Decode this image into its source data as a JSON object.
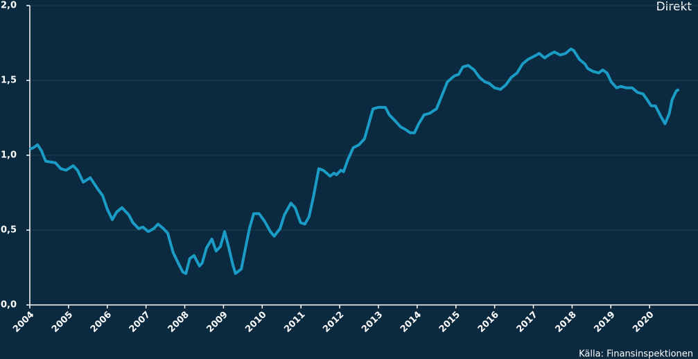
{
  "chart_data": {
    "type": "line",
    "x": [
      2004.0,
      2004.09,
      2004.2,
      2004.3,
      2004.41,
      2004.66,
      2004.8,
      2004.94,
      2005.12,
      2005.23,
      2005.38,
      2005.56,
      2005.74,
      2005.88,
      2006.0,
      2006.13,
      2006.24,
      2006.38,
      2006.56,
      2006.66,
      2006.81,
      2006.92,
      2007.06,
      2007.2,
      2007.31,
      2007.45,
      2007.56,
      2007.7,
      2007.85,
      2007.95,
      2008.03,
      2008.13,
      2008.24,
      2008.38,
      2008.45,
      2008.56,
      2008.7,
      2008.81,
      2008.92,
      2009.03,
      2009.13,
      2009.24,
      2009.31,
      2009.46,
      2009.56,
      2009.67,
      2009.78,
      2009.92,
      2010.06,
      2010.21,
      2010.31,
      2010.46,
      2010.57,
      2010.74,
      2010.85,
      2010.99,
      2011.1,
      2011.21,
      2011.32,
      2011.46,
      2011.57,
      2011.67,
      2011.75,
      2011.85,
      2011.92,
      2012.03,
      2012.1,
      2012.21,
      2012.35,
      2012.5,
      2012.64,
      2012.75,
      2012.86,
      2013.0,
      2013.11,
      2013.18,
      2013.28,
      2013.43,
      2013.57,
      2013.71,
      2013.82,
      2013.93,
      2014.04,
      2014.18,
      2014.32,
      2014.5,
      2014.64,
      2014.78,
      2014.96,
      2015.07,
      2015.18,
      2015.32,
      2015.47,
      2015.61,
      2015.75,
      2015.86,
      2016.0,
      2016.15,
      2016.29,
      2016.43,
      2016.58,
      2016.72,
      2016.86,
      2017.01,
      2017.15,
      2017.29,
      2017.4,
      2017.54,
      2017.69,
      2017.83,
      2017.97,
      2018.04,
      2018.19,
      2018.33,
      2018.4,
      2018.54,
      2018.69,
      2018.79,
      2018.9,
      2019.01,
      2019.15,
      2019.26,
      2019.4,
      2019.55,
      2019.69,
      2019.83,
      2019.94,
      2020.04,
      2020.15,
      2020.29,
      2020.4,
      2020.51,
      2020.58,
      2020.69,
      2020.76
    ],
    "series": [
      {
        "name": "Direkt",
        "color": "#1a9cc6",
        "values": [
          1.04,
          1.05,
          1.07,
          1.03,
          0.96,
          0.95,
          0.91,
          0.9,
          0.93,
          0.9,
          0.82,
          0.85,
          0.78,
          0.73,
          0.64,
          0.57,
          0.62,
          0.65,
          0.6,
          0.55,
          0.51,
          0.52,
          0.49,
          0.51,
          0.54,
          0.51,
          0.48,
          0.35,
          0.27,
          0.22,
          0.21,
          0.31,
          0.33,
          0.26,
          0.28,
          0.38,
          0.44,
          0.36,
          0.39,
          0.49,
          0.39,
          0.27,
          0.21,
          0.24,
          0.37,
          0.51,
          0.61,
          0.61,
          0.56,
          0.49,
          0.46,
          0.51,
          0.6,
          0.68,
          0.65,
          0.55,
          0.54,
          0.59,
          0.72,
          0.91,
          0.9,
          0.88,
          0.86,
          0.88,
          0.87,
          0.9,
          0.89,
          0.97,
          1.05,
          1.07,
          1.11,
          1.21,
          1.31,
          1.32,
          1.32,
          1.32,
          1.27,
          1.23,
          1.19,
          1.17,
          1.15,
          1.15,
          1.21,
          1.27,
          1.28,
          1.31,
          1.4,
          1.49,
          1.53,
          1.54,
          1.59,
          1.6,
          1.57,
          1.52,
          1.49,
          1.48,
          1.45,
          1.44,
          1.47,
          1.52,
          1.55,
          1.61,
          1.64,
          1.66,
          1.68,
          1.65,
          1.67,
          1.69,
          1.67,
          1.68,
          1.71,
          1.7,
          1.64,
          1.61,
          1.58,
          1.56,
          1.55,
          1.57,
          1.55,
          1.49,
          1.45,
          1.46,
          1.45,
          1.45,
          1.42,
          1.41,
          1.37,
          1.33,
          1.33,
          1.26,
          1.21,
          1.28,
          1.37,
          1.43,
          1.44
        ]
      }
    ],
    "xlim": [
      2004,
      2021.25
    ],
    "xticks": [
      2004,
      2005,
      2006,
      2007,
      2008,
      2009,
      2010,
      2011,
      2012,
      2013,
      2014,
      2015,
      2016,
      2017,
      2018,
      2019,
      2020
    ],
    "ylim": [
      0,
      2
    ],
    "yticks": [
      {
        "value": 0,
        "label": "0,0"
      },
      {
        "value": 0.5,
        "label": "0,5"
      },
      {
        "value": 1,
        "label": "1,0"
      },
      {
        "value": 1.5,
        "label": "1,5"
      },
      {
        "value": 2,
        "label": "2,0"
      }
    ],
    "grid": true,
    "source": "Källa: Finansinspektionen"
  }
}
